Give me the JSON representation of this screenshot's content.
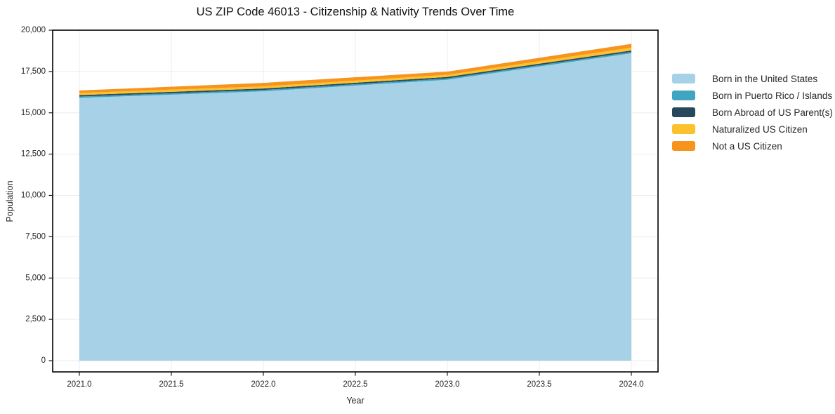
{
  "chart_data": {
    "type": "area",
    "stacked": true,
    "title": "US ZIP Code 46013 - Citizenship & Nativity Trends Over Time",
    "xlabel": "Year",
    "ylabel": "Population",
    "x": [
      2021,
      2022,
      2023,
      2024
    ],
    "series": [
      {
        "name": "Born in the United States",
        "color": "#a6d1e6",
        "values": [
          15900,
          16300,
          17000,
          18600
        ]
      },
      {
        "name": "Born in Puerto Rico / Islands",
        "color": "#3fa5c1",
        "values": [
          85,
          85,
          85,
          85
        ]
      },
      {
        "name": "Born Abroad of US Parent(s)",
        "color": "#27485c",
        "values": [
          85,
          85,
          85,
          85
        ]
      },
      {
        "name": "Naturalized US Citizen",
        "color": "#fcc22d",
        "values": [
          130,
          130,
          130,
          170
        ]
      },
      {
        "name": "Not a US Citizen",
        "color": "#f7941e",
        "values": [
          150,
          210,
          190,
          230
        ]
      }
    ],
    "stack_totals": [
      16350,
      16810,
      17490,
      19170
    ],
    "x_ticks": [
      2021.0,
      2021.5,
      2022.0,
      2022.5,
      2023.0,
      2023.5,
      2024.0
    ],
    "x_tick_labels": [
      "2021.0",
      "2021.5",
      "2022.0",
      "2022.5",
      "2023.0",
      "2023.5",
      "2024.0"
    ],
    "y_ticks": [
      0,
      2500,
      5000,
      7500,
      10000,
      12500,
      15000,
      17500,
      20000
    ],
    "y_tick_labels": [
      "0",
      "2,500",
      "5,000",
      "7,500",
      "10,000",
      "12,500",
      "15,000",
      "17,500",
      "20,000"
    ],
    "xlim": [
      2021,
      2024
    ],
    "ylim": [
      0,
      20000
    ],
    "grid": true,
    "legend_position": "right-outside",
    "colors": {
      "grid_line": "#ececec",
      "panel_border": "#000000",
      "tick_text": "#262626",
      "background": "#ffffff"
    }
  }
}
